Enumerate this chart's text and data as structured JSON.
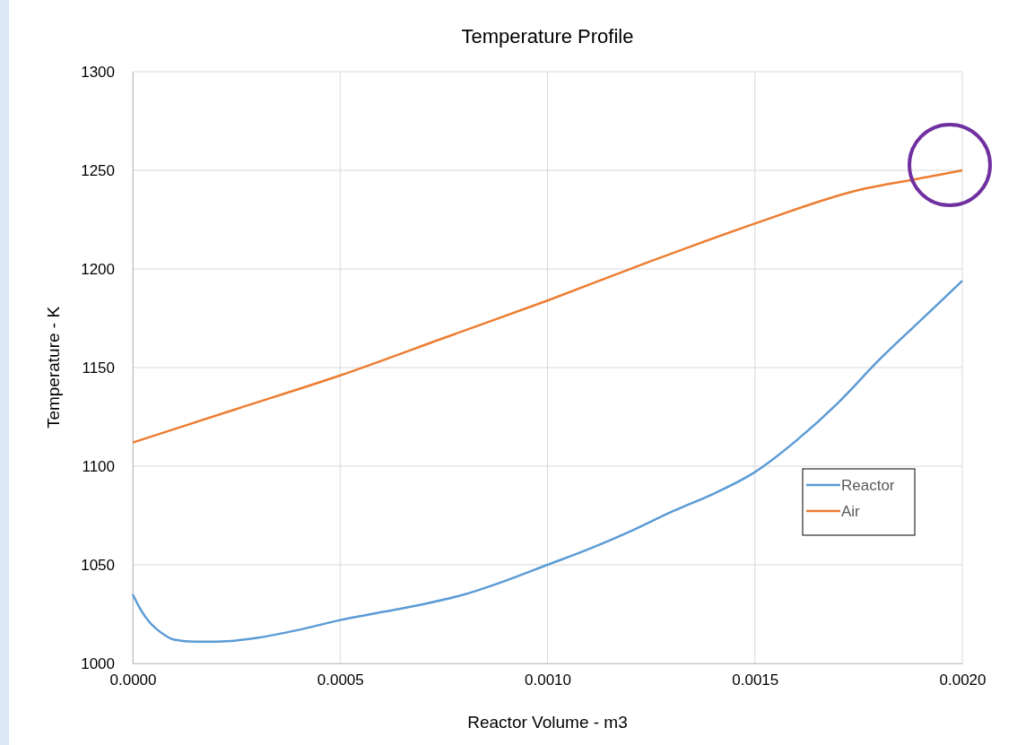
{
  "chart_data": {
    "type": "line",
    "title": "Temperature Profile",
    "xlabel": "Reactor Volume - m3",
    "ylabel": "Temperature - K",
    "xlim": [
      0,
      0.002
    ],
    "xticks": [
      {
        "value": 0,
        "label": "0.0000"
      },
      {
        "value": 0.0005,
        "label": "0.0005"
      },
      {
        "value": 0.001,
        "label": "0.0010"
      },
      {
        "value": 0.0015,
        "label": "0.0015"
      },
      {
        "value": 0.002,
        "label": "0.0020"
      }
    ],
    "ylim": [
      1000,
      1300
    ],
    "yticks": [
      1000,
      1050,
      1100,
      1150,
      1200,
      1250,
      1300
    ],
    "grid": true,
    "legend": "right",
    "marker": "none",
    "line_style": "solid",
    "series": [
      {
        "name": "Reactor",
        "color": "#5b9bd5",
        "x": [
          0,
          2e-05,
          4e-05,
          6e-05,
          8e-05,
          0.0001,
          0.00015,
          0.0002,
          0.0003,
          0.0004,
          0.0005,
          0.0006,
          0.0007,
          0.0008,
          0.0009,
          0.001,
          0.0011,
          0.0012,
          0.0013,
          0.0014,
          0.0015,
          0.0016,
          0.0017,
          0.0018,
          0.0019,
          0.002
        ],
        "values": [
          1035,
          1027,
          1021,
          1017,
          1014,
          1012,
          1011,
          1011,
          1013,
          1017,
          1022,
          1026,
          1030,
          1035,
          1042,
          1050,
          1058,
          1067,
          1077,
          1086,
          1097,
          1113,
          1132,
          1154,
          1174,
          1194
        ]
      },
      {
        "name": "Air",
        "color": "#ed7d31",
        "x": [
          0,
          0.00025,
          0.0005,
          0.00075,
          0.001,
          0.00125,
          0.0015,
          0.00175,
          0.0019,
          0.002
        ],
        "values": [
          1112,
          1129,
          1146,
          1165,
          1184,
          1204,
          1223,
          1240,
          1246,
          1250
        ]
      }
    ]
  }
}
